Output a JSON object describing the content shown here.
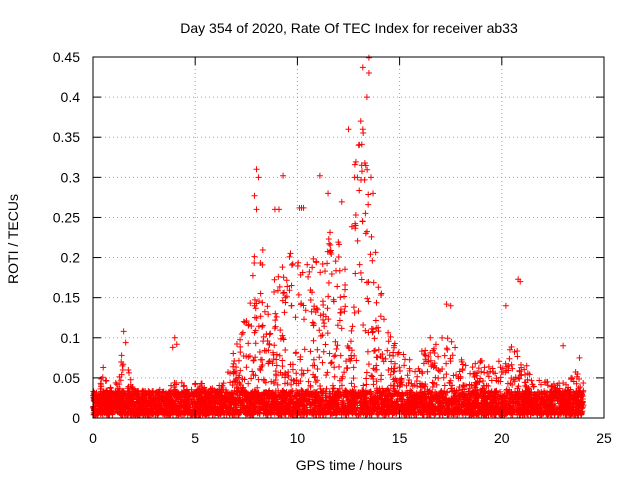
{
  "chart_data": {
    "type": "scatter",
    "title": "Day 354 of 2020, Rate Of TEC Index for receiver ab33",
    "xlabel": "GPS time / hours",
    "ylabel": "ROTI / TECUs",
    "xlim": [
      0,
      25
    ],
    "ylim": [
      0,
      0.45
    ],
    "xticks": [
      0,
      5,
      10,
      15,
      20,
      25
    ],
    "yticks": [
      0,
      0.05,
      0.1,
      0.15,
      0.2,
      0.25,
      0.3,
      0.35,
      0.4,
      0.45
    ],
    "grid": true,
    "legend": "none",
    "marker": "+",
    "color": "#ff0000",
    "envelope": {
      "x": [
        0.0,
        0.5,
        1.0,
        1.5,
        2.0,
        3.0,
        4.0,
        5.0,
        6.0,
        6.5,
        7.0,
        7.5,
        8.0,
        8.5,
        9.0,
        9.5,
        10.0,
        10.5,
        11.0,
        11.5,
        12.0,
        12.5,
        13.0,
        13.3,
        13.6,
        14.0,
        14.5,
        15.0,
        15.5,
        16.0,
        16.5,
        17.0,
        17.5,
        18.0,
        18.5,
        19.0,
        19.5,
        20.0,
        20.5,
        21.0,
        21.5,
        22.0,
        22.5,
        23.0,
        23.5,
        24.0
      ],
      "y": [
        0.03,
        0.05,
        0.035,
        0.08,
        0.03,
        0.03,
        0.04,
        0.04,
        0.04,
        0.045,
        0.09,
        0.13,
        0.22,
        0.2,
        0.17,
        0.2,
        0.21,
        0.19,
        0.2,
        0.22,
        0.26,
        0.3,
        0.35,
        0.37,
        0.28,
        0.18,
        0.1,
        0.08,
        0.07,
        0.08,
        0.09,
        0.1,
        0.1,
        0.07,
        0.06,
        0.07,
        0.06,
        0.07,
        0.1,
        0.07,
        0.05,
        0.04,
        0.045,
        0.04,
        0.06,
        0.05
      ]
    },
    "outliers": [
      [
        0.5,
        0.063
      ],
      [
        1.5,
        0.108
      ],
      [
        1.6,
        0.094
      ],
      [
        1.4,
        0.078
      ],
      [
        4.0,
        0.1
      ],
      [
        3.9,
        0.088
      ],
      [
        4.1,
        0.092
      ],
      [
        8.0,
        0.31
      ],
      [
        7.9,
        0.277
      ],
      [
        8.1,
        0.3
      ],
      [
        8.0,
        0.26
      ],
      [
        9.3,
        0.302
      ],
      [
        9.1,
        0.26
      ],
      [
        8.9,
        0.26
      ],
      [
        10.1,
        0.262
      ],
      [
        10.2,
        0.262
      ],
      [
        10.3,
        0.262
      ],
      [
        11.1,
        0.302
      ],
      [
        11.5,
        0.28
      ],
      [
        12.5,
        0.36
      ],
      [
        12.8,
        0.3
      ],
      [
        13.0,
        0.34
      ],
      [
        13.1,
        0.37
      ],
      [
        13.2,
        0.36
      ],
      [
        13.2,
        0.437
      ],
      [
        13.5,
        0.449
      ],
      [
        13.5,
        0.43
      ],
      [
        13.4,
        0.4
      ],
      [
        13.6,
        0.3
      ],
      [
        13.7,
        0.28
      ],
      [
        16.5,
        0.1
      ],
      [
        17.3,
        0.142
      ],
      [
        17.5,
        0.14
      ],
      [
        20.2,
        0.14
      ],
      [
        20.8,
        0.173
      ],
      [
        20.9,
        0.17
      ],
      [
        23.0,
        0.09
      ],
      [
        23.8,
        0.075
      ]
    ]
  }
}
